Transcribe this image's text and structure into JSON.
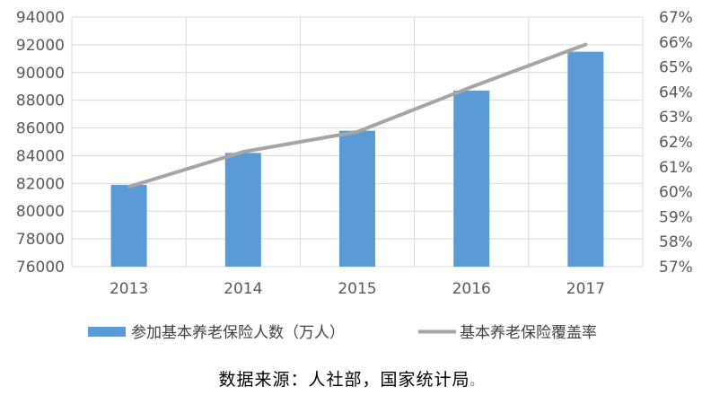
{
  "chart_data": {
    "type": "bar",
    "categories": [
      "2013",
      "2014",
      "2015",
      "2016",
      "2017"
    ],
    "series": [
      {
        "name": "参加基本养老保险人数（万人）",
        "type": "bar",
        "axis": "left",
        "color": "#5b9bd5",
        "values": [
          81900,
          84200,
          85800,
          88700,
          91500
        ]
      },
      {
        "name": "基本养老保险覆盖率",
        "type": "line",
        "axis": "right",
        "color": "#a5a5a5",
        "values": [
          60.2,
          61.6,
          62.4,
          64.2,
          65.9
        ]
      }
    ],
    "y_left": {
      "min": 76000,
      "max": 94000,
      "step": 2000,
      "tick_labels": [
        "76000",
        "78000",
        "80000",
        "82000",
        "84000",
        "86000",
        "88000",
        "90000",
        "92000",
        "94000"
      ]
    },
    "y_right": {
      "min": 57,
      "max": 67,
      "step": 1,
      "tick_labels": [
        "57%",
        "58%",
        "59%",
        "60%",
        "61%",
        "62%",
        "63%",
        "64%",
        "65%",
        "66%",
        "67%"
      ]
    },
    "grid": true,
    "legend": "bottom",
    "title": "",
    "xlabel": "",
    "ylabel": ""
  },
  "source_text": "数据来源：人社部，国家统计局",
  "source_mark": "。"
}
